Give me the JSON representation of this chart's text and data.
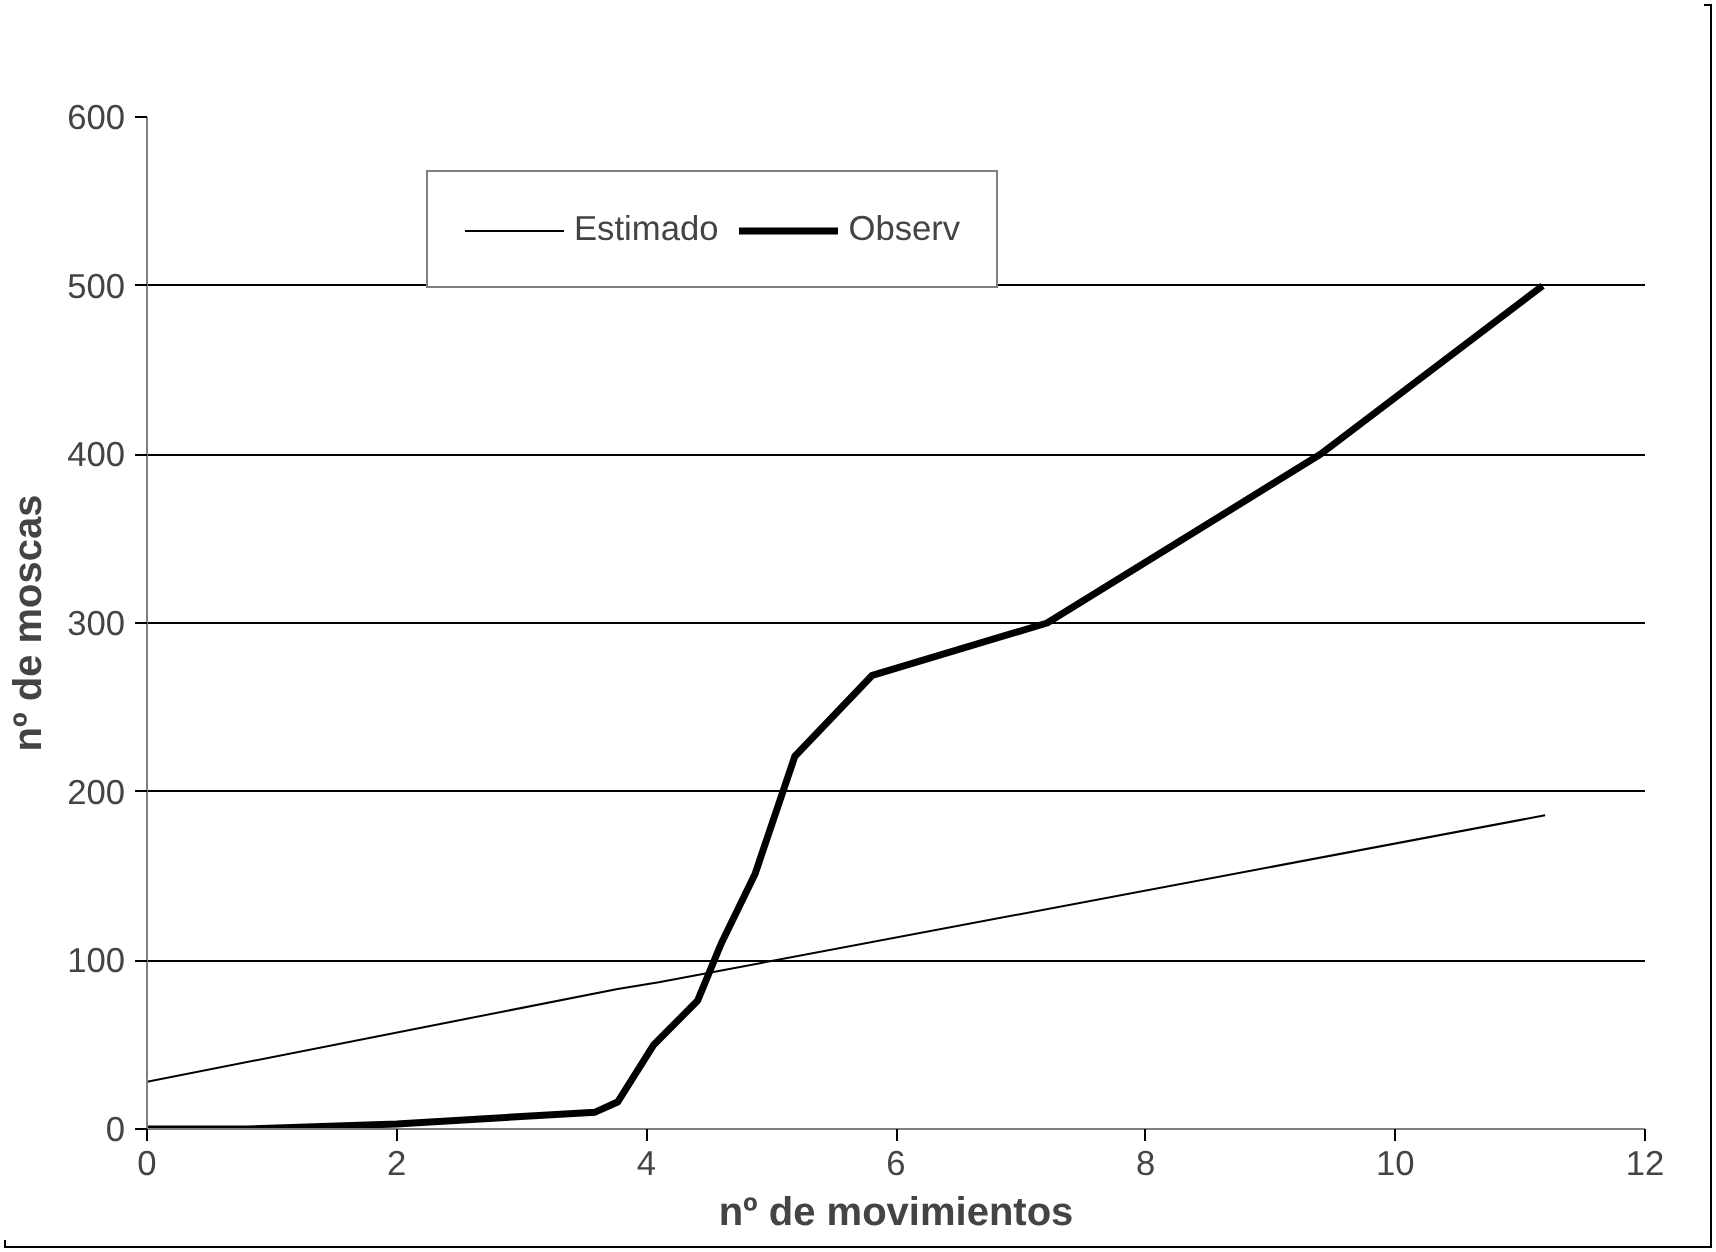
{
  "chart_data": {
    "type": "line",
    "xlabel": "nº de movimientos",
    "ylabel": "nº de moscas",
    "xlim": [
      0,
      12
    ],
    "ylim": [
      0,
      600
    ],
    "xticks": [
      0,
      2,
      4,
      6,
      8,
      10,
      12
    ],
    "yticks": [
      0,
      100,
      200,
      300,
      400,
      500,
      600
    ],
    "grid": "y",
    "legend": "top left",
    "marker": "none",
    "series": [
      {
        "name": "Estimado",
        "color": "#000000",
        "x": [
          0,
          3.77,
          4.1,
          11.2
        ],
        "values": [
          28,
          83,
          87,
          186
        ]
      },
      {
        "name": "Observ",
        "color": "#000000",
        "x": [
          0,
          0.8,
          2,
          3.59,
          3.77,
          4.06,
          4.41,
          4.6,
          4.87,
          5.19,
          5.81,
          7.21,
          9.4,
          11.18
        ],
        "values": [
          0,
          0,
          3,
          10,
          16,
          50,
          76,
          110,
          151,
          221,
          269,
          300,
          400,
          500
        ]
      }
    ]
  }
}
